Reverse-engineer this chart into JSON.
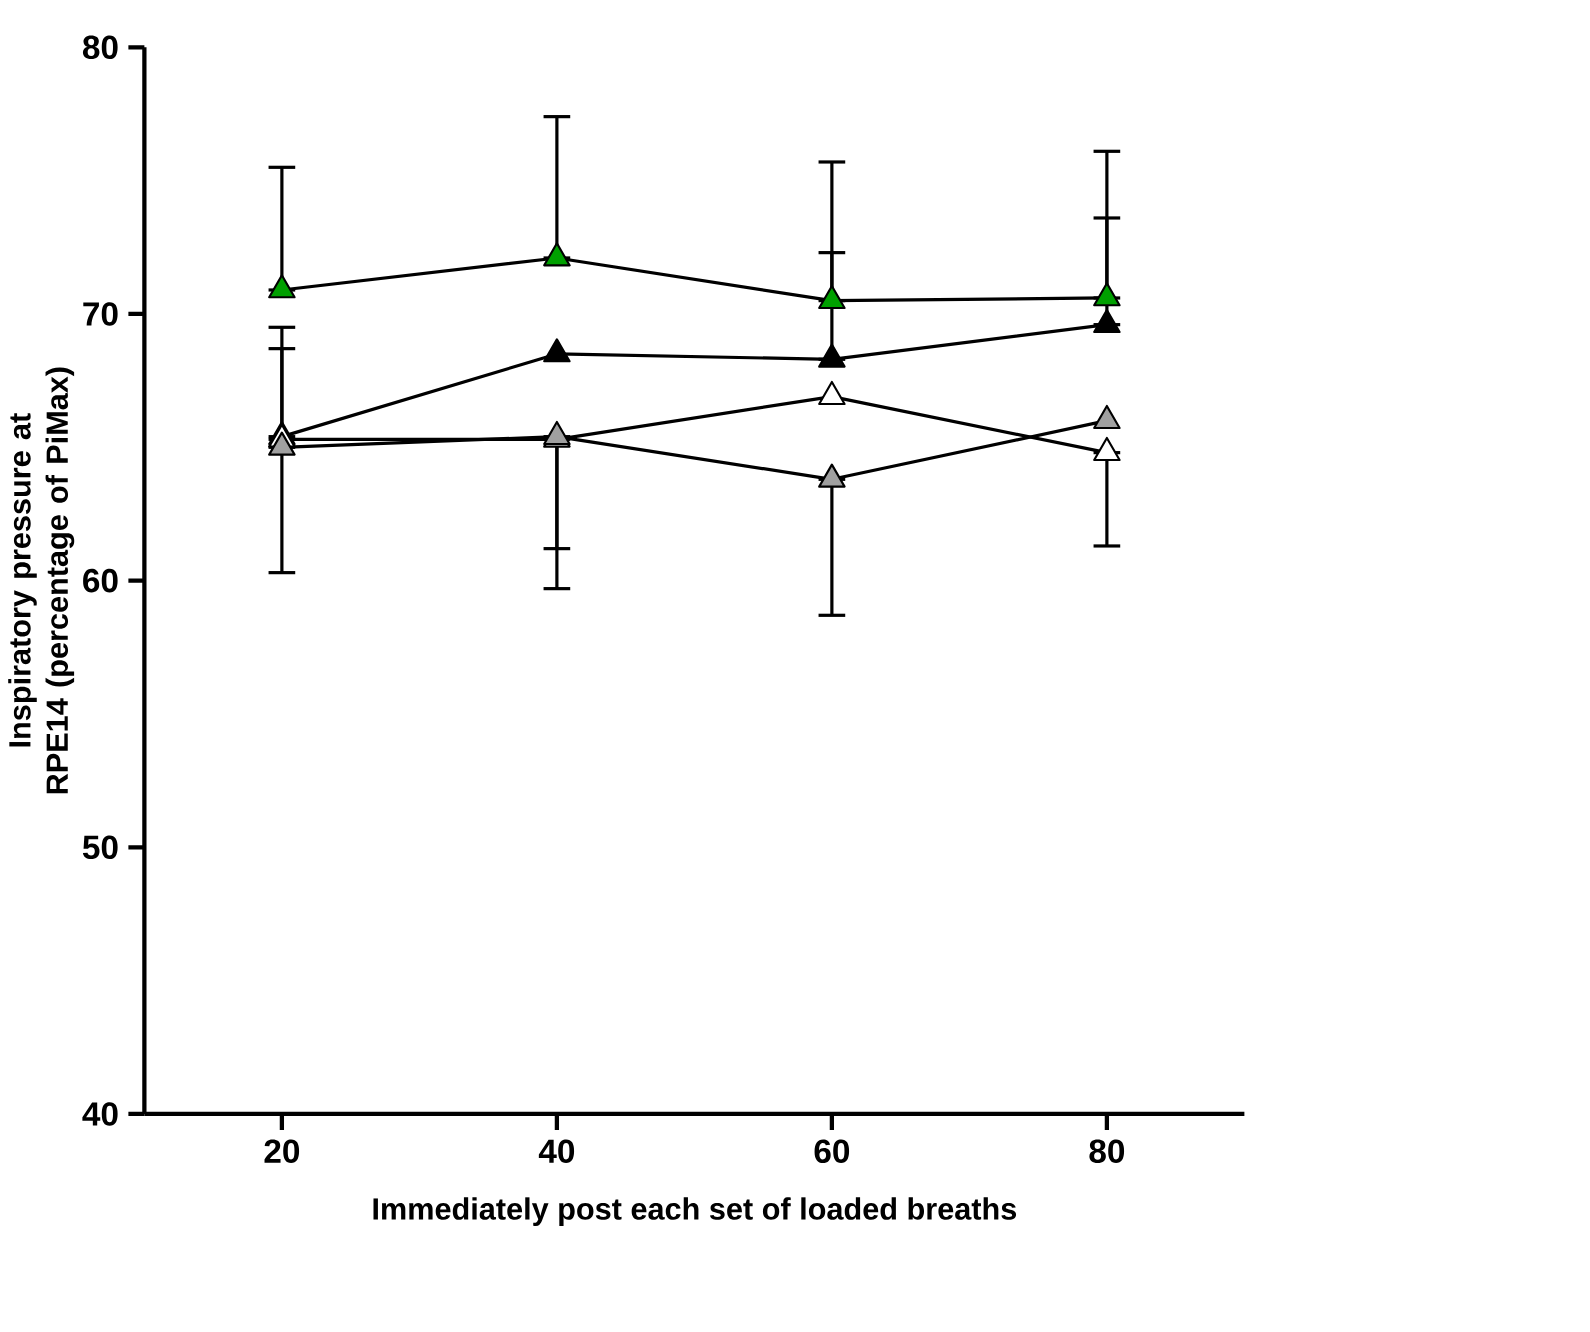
{
  "chart_data": {
    "type": "line",
    "xlabel": "Immediately post each set of loaded breaths",
    "ylabel": "Inspiratory pressure at RPE14 (percentage of PiMax)",
    "x": [
      20,
      40,
      60,
      80
    ],
    "xlim": [
      10,
      90
    ],
    "xticks": [
      20,
      40,
      60,
      80
    ],
    "ylim": [
      40,
      80
    ],
    "yticks": [
      40,
      50,
      60,
      70,
      80
    ],
    "marker": "triangle",
    "line_style": "solid",
    "series": [
      {
        "color": "#00a000",
        "values": [
          70.9,
          72.1,
          70.5,
          70.6
        ],
        "errors": [
          [
            70.9,
            75.5
          ],
          [
            72.1,
            77.4
          ],
          [
            70.5,
            75.7
          ],
          [
            70.6,
            76.1
          ]
        ]
      },
      {
        "color": "#000000",
        "values": [
          65.4,
          68.5,
          68.3,
          69.6
        ],
        "errors": [
          [
            65.4,
            69.5
          ],
          null,
          [
            68.3,
            72.3
          ],
          [
            69.6,
            73.6
          ]
        ]
      },
      {
        "color": "#ffffff",
        "values": [
          65.3,
          65.3,
          66.9,
          64.8
        ],
        "errors": [
          [
            65.3,
            68.7
          ],
          [
            61.2,
            65.3
          ],
          null,
          [
            61.3,
            64.8
          ]
        ]
      },
      {
        "color": "#a0a0a0",
        "values": [
          65.0,
          65.4,
          63.8,
          66.0
        ],
        "errors": [
          [
            60.3,
            65.0
          ],
          [
            59.7,
            65.4
          ],
          [
            58.7,
            63.8
          ],
          null
        ]
      }
    ]
  }
}
